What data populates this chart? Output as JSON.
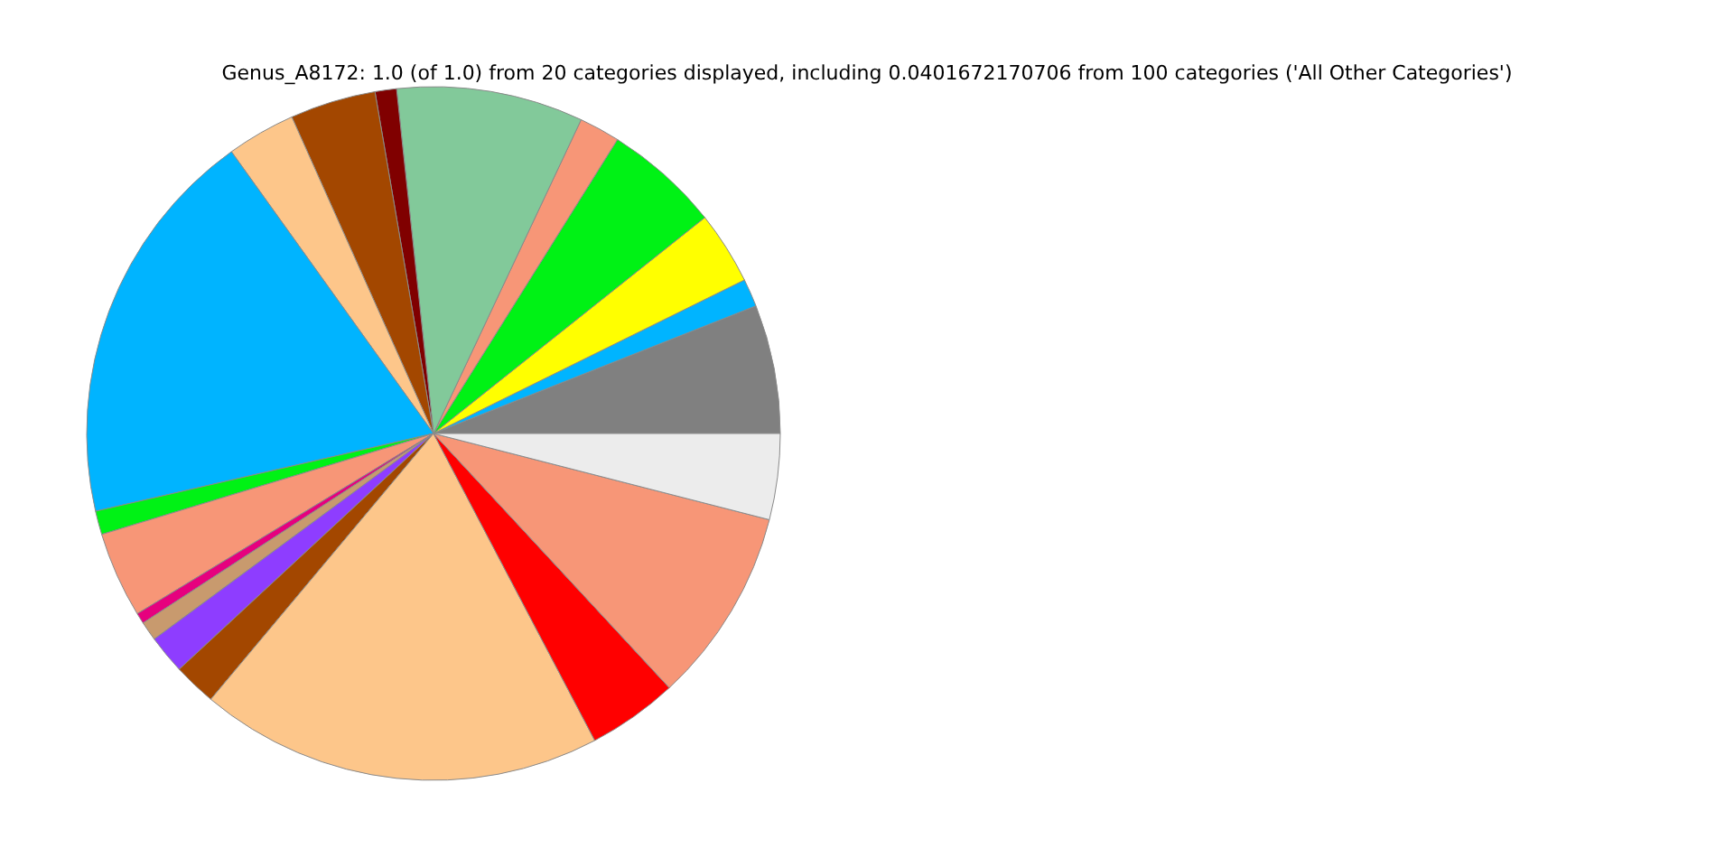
{
  "chart_data": {
    "type": "pie",
    "title": "Genus_A8172: 1.0 (of 1.0) from 20 categories displayed, including 0.0401672170706 from 100 categories ('All Other Categories')",
    "categories": [
      null,
      null,
      null,
      null,
      null,
      null,
      null,
      null,
      null,
      null,
      null,
      null,
      null,
      null,
      null,
      null,
      null,
      null,
      null,
      null
    ],
    "values": [
      6,
      1.3,
      3.4,
      5.4,
      1.9,
      8.7,
      1,
      4,
      3.2,
      18.7,
      1.1,
      4,
      0.5,
      0.9,
      1.8,
      2,
      18.8,
      4.2,
      9.1,
      4
    ],
    "colors": [
      "#808080",
      "#00b4ff",
      "#ffff00",
      "#00f215",
      "#f79677",
      "#82c99a",
      "#800000",
      "#a34700",
      "#fdc68a",
      "#00b4ff",
      "#00f215",
      "#f79677",
      "#e6007e",
      "#c89a6e",
      "#8e3dff",
      "#a34700",
      "#fdc68a",
      "#ff0000",
      "#f79677",
      "#ececec"
    ]
  }
}
